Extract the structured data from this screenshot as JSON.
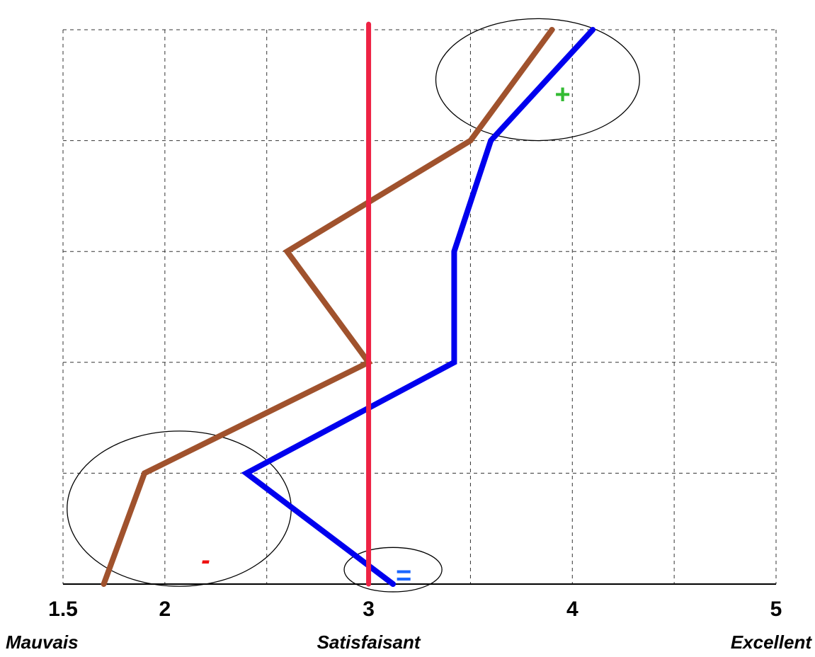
{
  "chart_data": {
    "type": "line",
    "title": "",
    "xlabel": "",
    "ylabel": "",
    "xlim": [
      1.5,
      5
    ],
    "ylim": [
      0,
      5
    ],
    "grid": true,
    "x_ticks": [
      {
        "value": 1.5,
        "label": "1.5"
      },
      {
        "value": 2,
        "label": "2"
      },
      {
        "value": 3,
        "label": "3"
      },
      {
        "value": 4,
        "label": "4"
      },
      {
        "value": 5,
        "label": "5"
      }
    ],
    "x_grid": [
      1.5,
      2,
      2.5,
      3,
      3.5,
      4,
      4.5,
      5
    ],
    "y_grid": [
      0,
      1,
      2,
      3,
      4,
      5
    ],
    "category_labels": [
      {
        "value": 1.5,
        "label": "Mauvais",
        "anchor": "start"
      },
      {
        "value": 3,
        "label": "Satisfaisant",
        "anchor": "middle"
      },
      {
        "value": 5,
        "label": "Excellent",
        "anchor": "end"
      }
    ],
    "series": [
      {
        "color": "#a0522d",
        "points": [
          [
            1.7,
            0
          ],
          [
            1.9,
            1
          ],
          [
            3.0,
            2
          ],
          [
            2.6,
            3
          ],
          [
            3.5,
            4
          ],
          [
            3.9,
            5
          ]
        ]
      },
      {
        "color": "#0000ee",
        "points": [
          [
            3.12,
            0
          ],
          [
            2.4,
            1
          ],
          [
            3.42,
            2
          ],
          [
            3.42,
            3
          ],
          [
            3.6,
            4
          ],
          [
            4.1,
            5
          ]
        ]
      }
    ],
    "reference_line": {
      "x": 3.0,
      "y_from": 0,
      "y_to": 5.05,
      "color": "#ee2244"
    },
    "annotations": [
      {
        "text": "+",
        "x": 3.95,
        "y": 4.4,
        "color": "#33bb33",
        "ellipse": {
          "cx": 3.83,
          "cy": 4.55,
          "rx": 0.5,
          "ry": 0.55
        }
      },
      {
        "text": "-",
        "x": 2.2,
        "y": 0.2,
        "color": "#ee1111",
        "ellipse": {
          "cx": 2.07,
          "cy": 0.68,
          "rx": 0.55,
          "ry": 0.7
        }
      },
      {
        "text": "=",
        "x": 3.17,
        "y": 0.06,
        "color": "#1a66ff",
        "ellipse": {
          "cx": 3.12,
          "cy": 0.13,
          "rx": 0.24,
          "ry": 0.2
        }
      }
    ]
  }
}
